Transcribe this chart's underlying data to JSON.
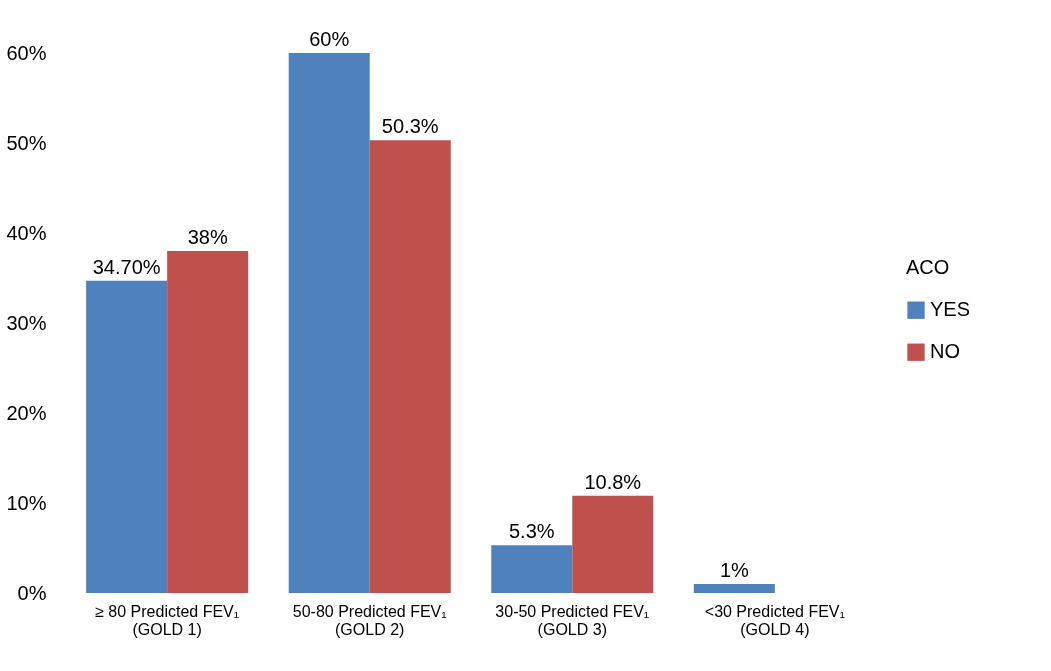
{
  "chart_data": {
    "type": "bar",
    "categories": [
      "≥ 80 Predicted FEV₁\n(GOLD 1)",
      "50-80 Predicted FEV₁\n(GOLD 2)",
      "30-50 Predicted FEV₁\n(GOLD 3)",
      "<30 Predicted FEV₁\n(GOLD 4)"
    ],
    "series": [
      {
        "name": "YES",
        "color": "#4f81bd",
        "values": [
          34.7,
          60,
          5.3,
          1
        ],
        "value_labels": [
          "34.70%",
          "60%",
          "5.3%",
          "1%"
        ]
      },
      {
        "name": "NO",
        "color": "#c0504d",
        "values": [
          38,
          50.3,
          10.8,
          null
        ],
        "value_labels": [
          "38%",
          "50.3%",
          "10.8%",
          null
        ]
      }
    ],
    "legend_title": "ACO",
    "legend": "right",
    "grid": false,
    "ylim": [
      0,
      60
    ],
    "yticks": [
      {
        "value": 0,
        "label": "0%"
      },
      {
        "value": 10,
        "label": "10%"
      },
      {
        "value": 20,
        "label": "20%"
      },
      {
        "value": 30,
        "label": "30%"
      },
      {
        "value": 40,
        "label": "40%"
      },
      {
        "value": 50,
        "label": "50%"
      },
      {
        "value": 60,
        "label": "60%"
      }
    ]
  }
}
